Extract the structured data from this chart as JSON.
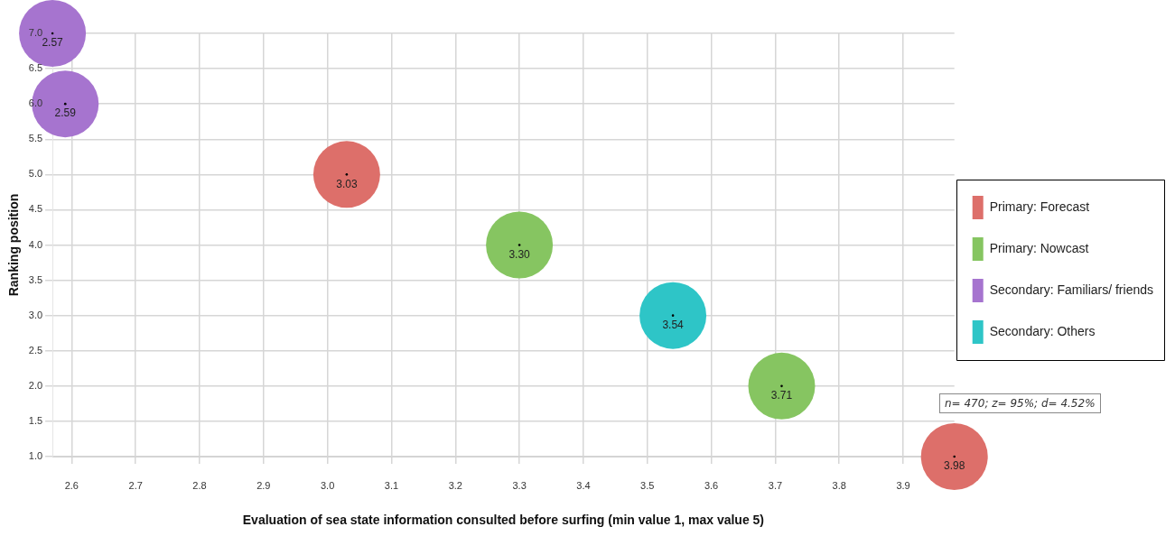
{
  "chart_data": {
    "type": "bubble",
    "xlabel": "Evaluation of sea state information consulted before surfing (min value 1, max value 5)",
    "ylabel": "Ranking position",
    "xlim": [
      2.57,
      3.98
    ],
    "xticks": [
      2.6,
      2.7,
      2.8,
      2.9,
      {
        "value": 3,
        "label": "3.0"
      },
      3.1,
      3.2,
      3.3,
      3.4,
      3.5,
      3.6,
      3.7,
      3.8,
      3.9
    ],
    "ylim": [
      1,
      7
    ],
    "yticks": [
      {
        "value": 1,
        "label": "1.0"
      },
      1.5,
      {
        "value": 2,
        "label": "2.0"
      },
      2.5,
      {
        "value": 3,
        "label": "3.0"
      },
      3.5,
      {
        "value": 4,
        "label": "4.0"
      },
      4.5,
      {
        "value": 5,
        "label": "5.0"
      },
      5.5,
      {
        "value": 6,
        "label": "6.0"
      },
      6.5,
      {
        "value": 7,
        "label": "7.0"
      }
    ],
    "grid": true,
    "legend": "right",
    "annotations": [
      "n= 470; z= 95%; d= 4.52%",
      {
        "text": "3.03",
        "x": 3.03,
        "y": 5
      },
      {
        "text": "3.98",
        "x": 3.98,
        "y": 1
      },
      {
        "text": "3.30",
        "x": 3.3,
        "y": 4
      },
      {
        "text": "3.71",
        "x": 3.71,
        "y": 2
      },
      {
        "text": "2.57",
        "x": 2.57,
        "y": 7
      },
      {
        "text": "2.59",
        "x": 2.59,
        "y": 6
      },
      {
        "text": "3.54",
        "x": 3.54,
        "y": 3
      }
    ],
    "series": [
      {
        "name": "Primary: Forecast",
        "color": "#dd6f6a",
        "x": [
          3.03,
          3.98
        ],
        "values": [
          5,
          1
        ],
        "sizes": [
          1,
          1
        ]
      },
      {
        "name": "Primary: Nowcast",
        "color": "#86c561",
        "x": [
          3.3,
          3.71
        ],
        "values": [
          4,
          2
        ],
        "sizes": [
          1,
          1
        ]
      },
      {
        "name": "Secondary: Familiars/ friends",
        "color": "#a674cf",
        "x": [
          2.57,
          2.59
        ],
        "values": [
          7,
          6
        ],
        "sizes": [
          1,
          1
        ]
      },
      {
        "name": "Secondary: Others",
        "color": "#2ec5c7",
        "x": [
          3.54
        ],
        "values": [
          3
        ],
        "sizes": [
          1
        ]
      }
    ]
  }
}
